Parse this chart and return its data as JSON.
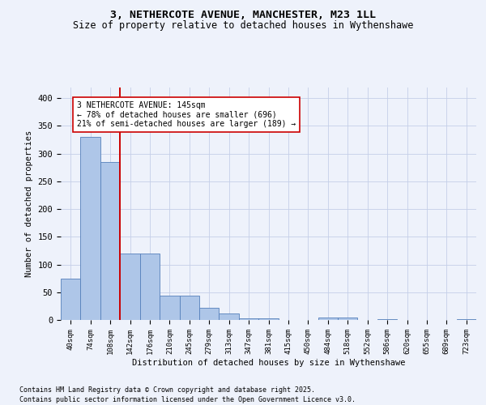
{
  "title1": "3, NETHERCOTE AVENUE, MANCHESTER, M23 1LL",
  "title2": "Size of property relative to detached houses in Wythenshawe",
  "xlabel": "Distribution of detached houses by size in Wythenshawe",
  "ylabel": "Number of detached properties",
  "categories": [
    "40sqm",
    "74sqm",
    "108sqm",
    "142sqm",
    "176sqm",
    "210sqm",
    "245sqm",
    "279sqm",
    "313sqm",
    "347sqm",
    "381sqm",
    "415sqm",
    "450sqm",
    "484sqm",
    "518sqm",
    "552sqm",
    "586sqm",
    "620sqm",
    "655sqm",
    "689sqm",
    "723sqm"
  ],
  "values": [
    75,
    330,
    285,
    120,
    120,
    44,
    44,
    22,
    12,
    3,
    3,
    0,
    0,
    4,
    4,
    0,
    2,
    0,
    0,
    0,
    2
  ],
  "bar_color": "#aec6e8",
  "bar_edge_color": "#5580bb",
  "vline_color": "#cc0000",
  "vline_pos": 2.5,
  "annotation_text": "3 NETHERCOTE AVENUE: 145sqm\n← 78% of detached houses are smaller (696)\n21% of semi-detached houses are larger (189) →",
  "annotation_box_color": "#ffffff",
  "annotation_box_edge": "#cc0000",
  "ylim": [
    0,
    420
  ],
  "yticks": [
    0,
    50,
    100,
    150,
    200,
    250,
    300,
    350,
    400
  ],
  "footnote1": "Contains HM Land Registry data © Crown copyright and database right 2025.",
  "footnote2": "Contains public sector information licensed under the Open Government Licence v3.0.",
  "bg_color": "#eef2fb",
  "plot_bg_color": "#eef2fb",
  "grid_color": "#c5cfe8"
}
